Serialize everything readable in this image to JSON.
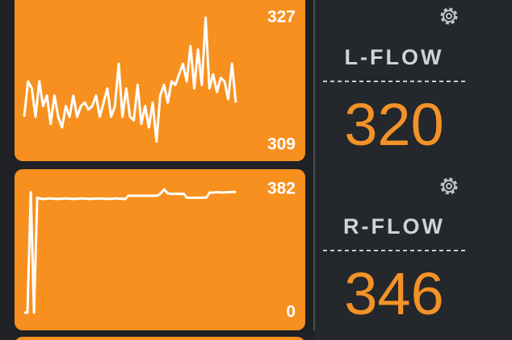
{
  "panels": [
    {
      "label": "L-FLOW",
      "value": 320,
      "chart": {
        "type": "line",
        "color": "#ffffff",
        "ylim": [
          309,
          327
        ],
        "yticks": [
          309,
          327
        ],
        "values": [
          313,
          318,
          317,
          313,
          318,
          314.5,
          316,
          312,
          316,
          313,
          311.5,
          314.5,
          313,
          316,
          313,
          314.5,
          315,
          314,
          314.5,
          316,
          313,
          315,
          317,
          313,
          314.5,
          320.5,
          313,
          317,
          313,
          312.5,
          317.5,
          312,
          314.5,
          311.5,
          315,
          309.5,
          316,
          317.5,
          315,
          318,
          317.5,
          319,
          320.5,
          318,
          323,
          317,
          322.5,
          317.5,
          327,
          317,
          319,
          316.5,
          318.5,
          318,
          315.5,
          320.5,
          315
        ]
      }
    },
    {
      "label": "R-FLOW",
      "value": 346,
      "chart": {
        "type": "line",
        "color": "#ffffff",
        "ylim": [
          0,
          382
        ],
        "yticks": [
          0,
          382
        ],
        "values": [
          0,
          0,
          373,
          0,
          356,
          353,
          352,
          353,
          354,
          353,
          352,
          353,
          353,
          354,
          353,
          352,
          353,
          353,
          354,
          353,
          352,
          353,
          353,
          354,
          353,
          353,
          352,
          353,
          354,
          353,
          353,
          352,
          362,
          362,
          362,
          362,
          362,
          362,
          362,
          362,
          362,
          363,
          370,
          382,
          370,
          368,
          368,
          368,
          368,
          368,
          356,
          356,
          356,
          356,
          356,
          356,
          357,
          372,
          372,
          373,
          373,
          372,
          373,
          373,
          374,
          374
        ]
      }
    }
  ]
}
